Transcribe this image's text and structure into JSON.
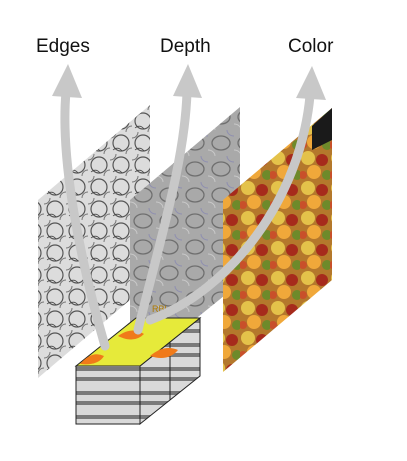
{
  "labels": {
    "edges": "Edges",
    "depth": "Depth",
    "color": "Color"
  },
  "block_label": "RBlos",
  "colors": {
    "arrow": "#c8c8c8",
    "block_top": "#e6ea3a",
    "block_blob": "#f07a1a",
    "stripe_light": "#d9d9d9",
    "stripe_dark": "#7a7a7a"
  }
}
